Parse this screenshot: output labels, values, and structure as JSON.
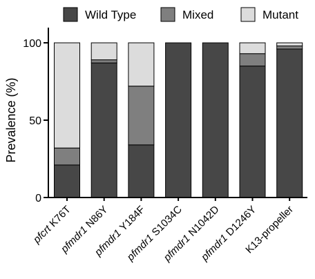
{
  "chart_data": {
    "type": "bar",
    "stacked": true,
    "title": "",
    "xlabel": "",
    "ylabel": "Prevalence (%)",
    "ylim": [
      0,
      100
    ],
    "yticks": [
      "0",
      "50",
      "100"
    ],
    "grid": false,
    "legend_position": "top",
    "categories": [
      {
        "gene": "pfcrt",
        "mutation": "K76T"
      },
      {
        "gene": "pfmdr1",
        "mutation": "N86Y"
      },
      {
        "gene": "pfmdr1",
        "mutation": "Y184F"
      },
      {
        "gene": "pfmdr1",
        "mutation": "S1034C"
      },
      {
        "gene": "pfmdr1",
        "mutation": "N1042D"
      },
      {
        "gene": "pfmdr1",
        "mutation": "D1246Y"
      },
      {
        "gene": "",
        "mutation": "K13-propeller"
      }
    ],
    "series": [
      {
        "name": "Wild Type",
        "color": "#474747",
        "values": [
          21,
          87,
          34,
          100,
          100,
          85,
          96
        ]
      },
      {
        "name": "Mixed",
        "color": "#7f7f7f",
        "values": [
          11,
          2,
          38,
          0,
          0,
          8,
          2
        ]
      },
      {
        "name": "Mutant",
        "color": "#dcdcdc",
        "values": [
          68,
          11,
          28,
          0,
          0,
          7,
          2
        ]
      }
    ]
  }
}
